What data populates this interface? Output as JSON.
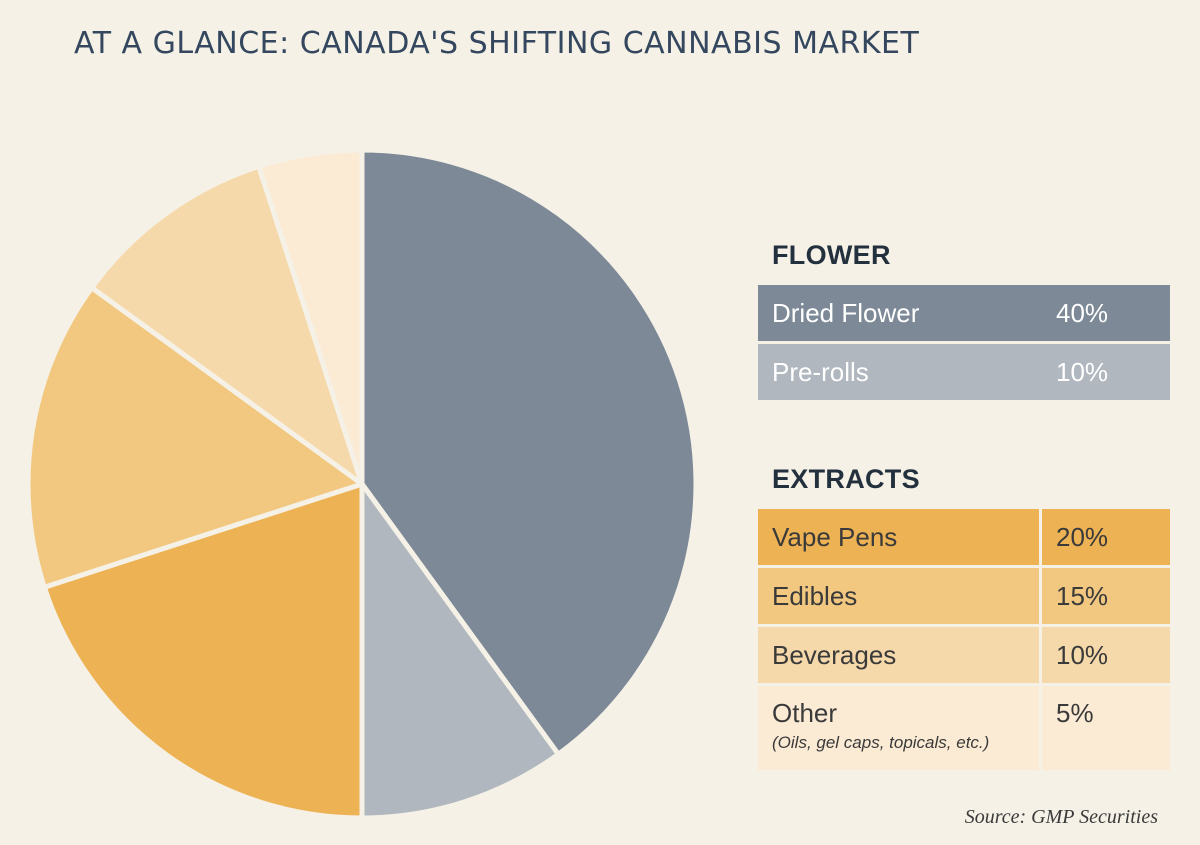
{
  "title": "AT A GLANCE: CANADA'S  SHIFTING CANNABIS MARKET",
  "source": "Source: GMP Securities",
  "sections": [
    {
      "heading": "FLOWER",
      "rows": [
        {
          "label": "Dried Flower",
          "value": "40%",
          "color": "#7d8997"
        },
        {
          "label": "Pre-rolls",
          "value": "10%",
          "color": "#b1b7bf"
        }
      ]
    },
    {
      "heading": "EXTRACTS",
      "rows": [
        {
          "label": "Vape Pens",
          "value": "20%",
          "color": "#edb253"
        },
        {
          "label": "Edibles",
          "value": "15%",
          "color": "#f2c880"
        },
        {
          "label": "Beverages",
          "value": "10%",
          "color": "#f6d9aa"
        },
        {
          "label": "Other",
          "note": "(Oils, gel caps, topicals, etc.)",
          "value": "5%",
          "color": "#fbead4"
        }
      ]
    }
  ],
  "chart_data": {
    "type": "pie",
    "categories": [
      "Dried Flower",
      "Pre-rolls",
      "Vape Pens",
      "Edibles",
      "Beverages",
      "Other"
    ],
    "values": [
      40,
      10,
      20,
      15,
      10,
      5
    ],
    "colors": [
      "#7d8997",
      "#b1b7bf",
      "#edb253",
      "#f2c880",
      "#f6d9aa",
      "#fbead4"
    ],
    "start": "12 o'clock",
    "direction": "clockwise"
  }
}
